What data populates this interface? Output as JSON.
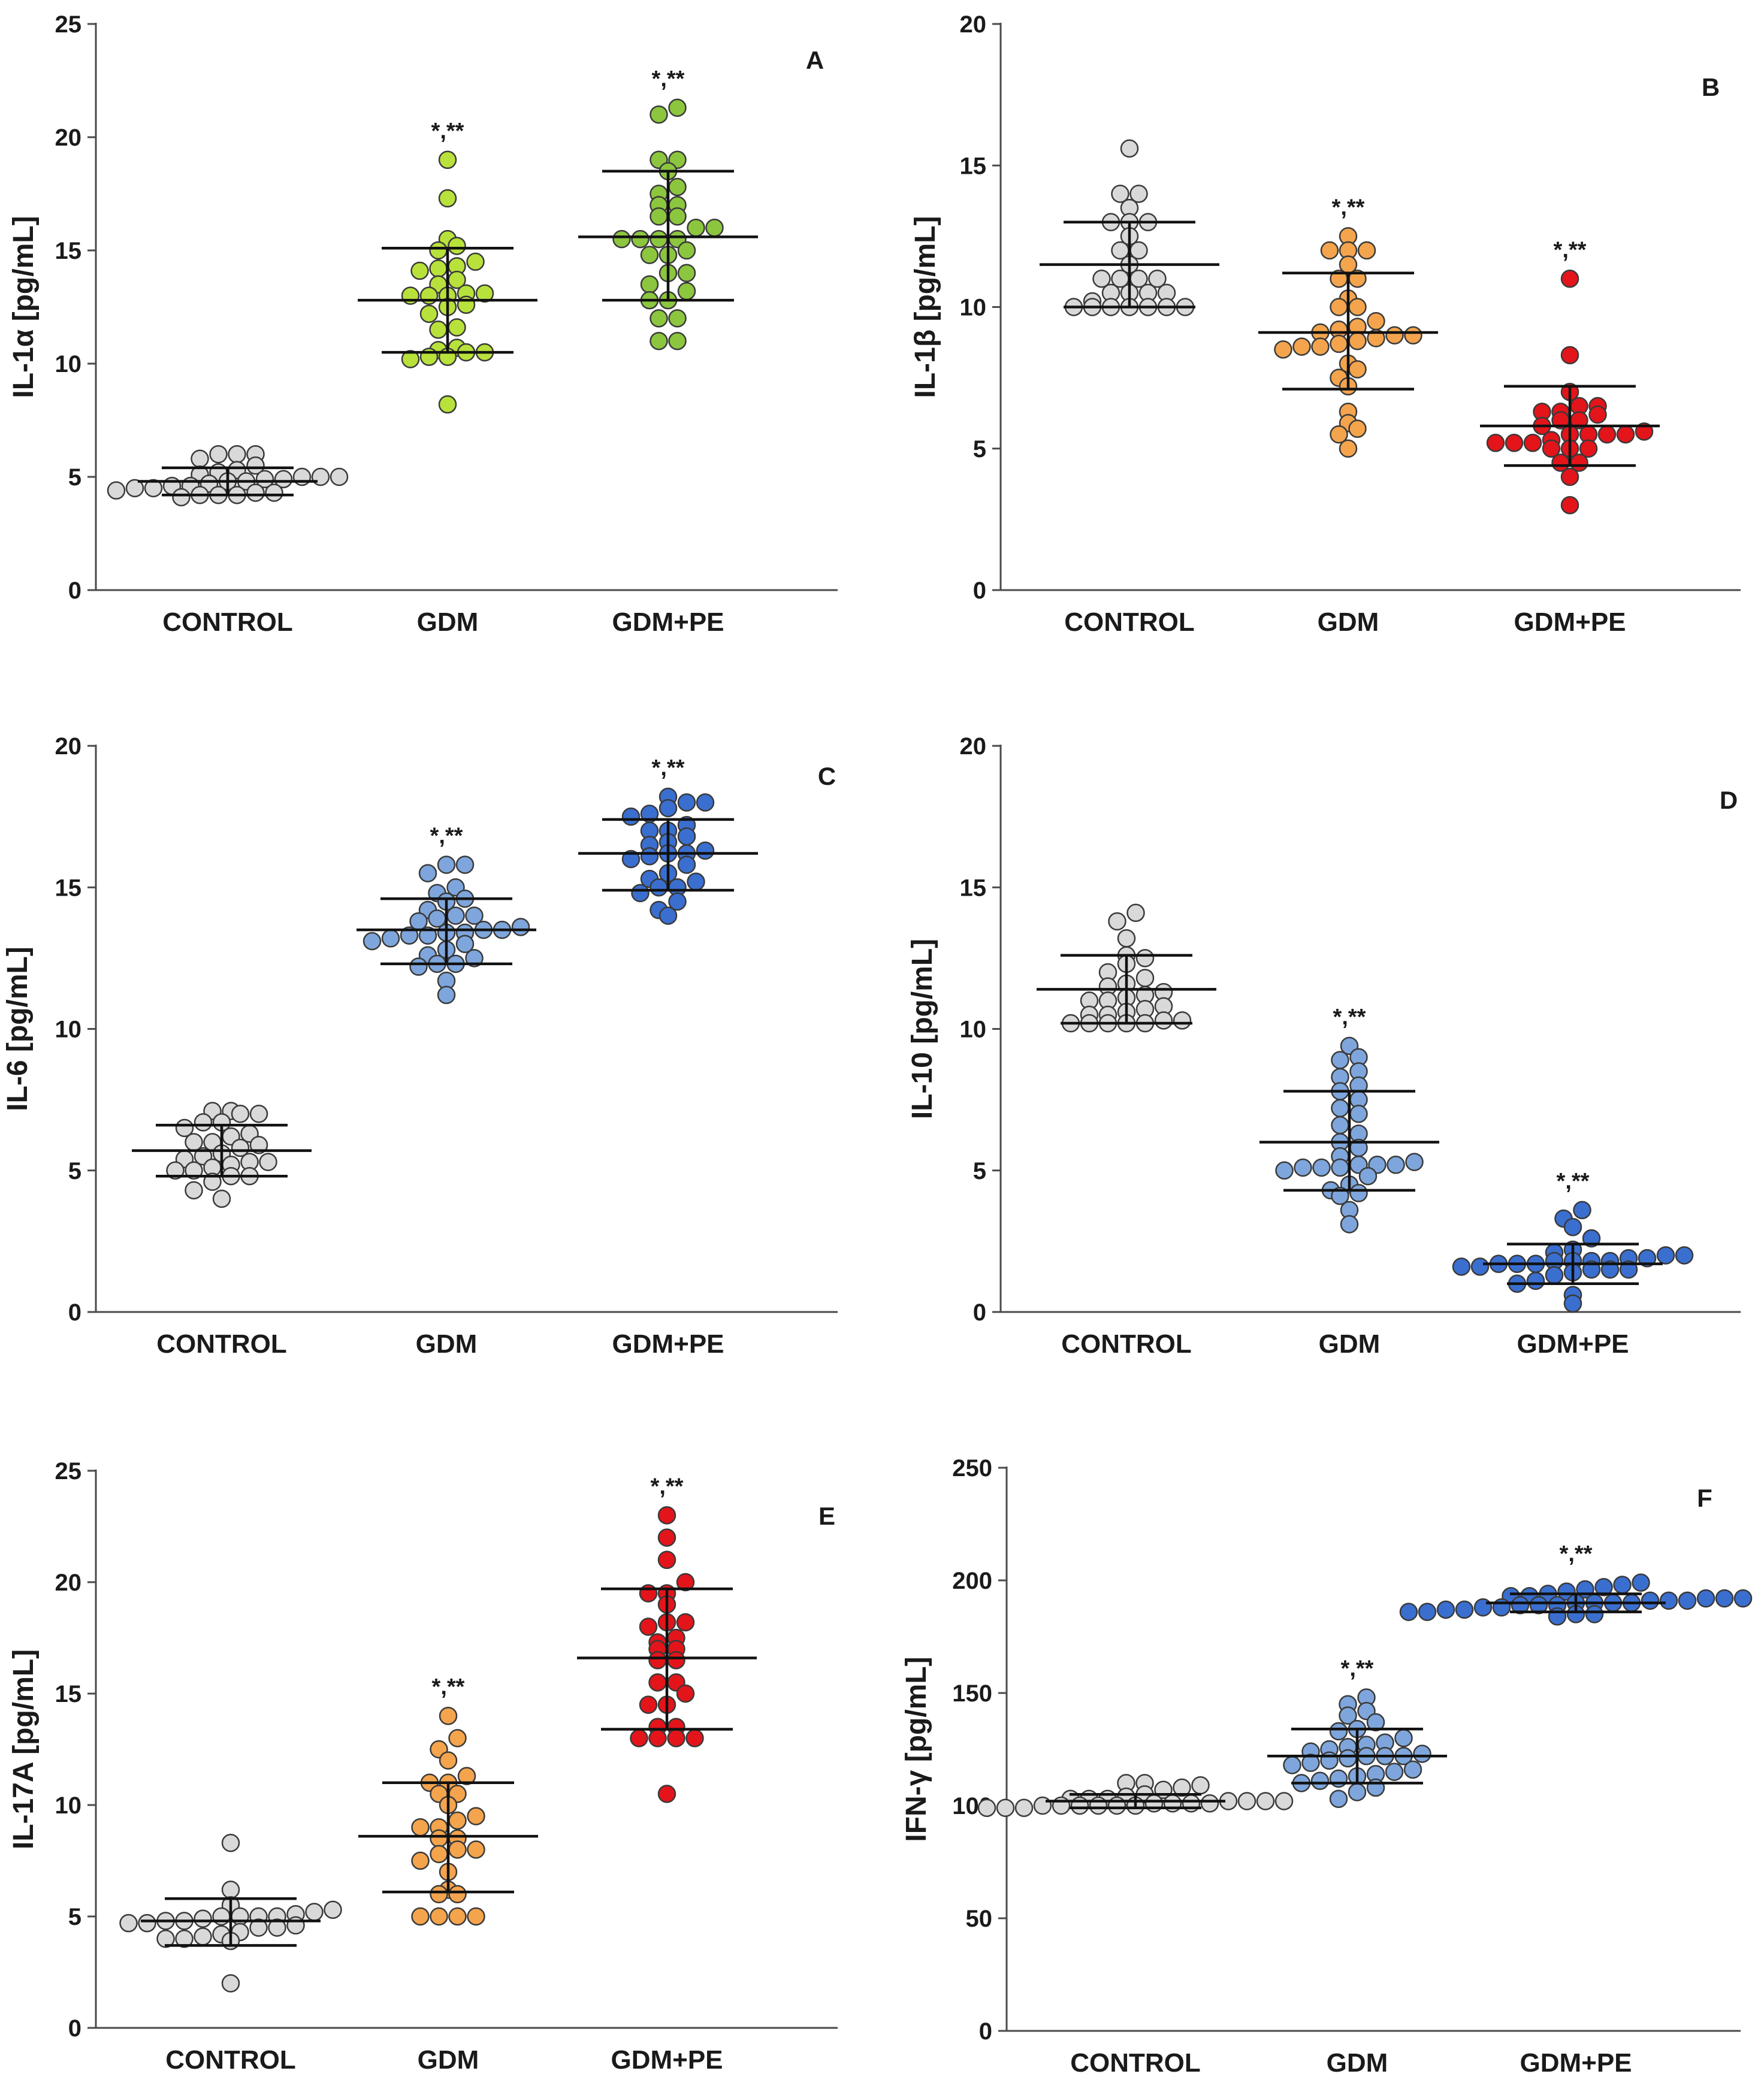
{
  "chart_data": [
    {
      "panel": "A",
      "type": "scatter",
      "ylabel": "IL-1α [pg/mL]",
      "ylim": [
        0,
        25
      ],
      "yticks": [
        0,
        5,
        10,
        15,
        20,
        25
      ],
      "categories": [
        "CONTROL",
        "GDM",
        "GDM+PE"
      ],
      "series": [
        {
          "name": "CONTROL",
          "color": "#d9d9d9",
          "mean": 4.8,
          "sd_low": 4.2,
          "sd_high": 5.4,
          "significance": "",
          "values": [
            4.1,
            4.2,
            4.2,
            4.2,
            4.3,
            4.3,
            4.4,
            4.5,
            4.5,
            4.6,
            4.6,
            4.7,
            4.8,
            4.8,
            4.9,
            4.9,
            5.0,
            5.0,
            5.0,
            5.1,
            5.2,
            5.3,
            5.5,
            5.8,
            6.0,
            6.0,
            6.0
          ]
        },
        {
          "name": "GDM",
          "color": "#b8e23b",
          "mean": 12.8,
          "sd_low": 10.5,
          "sd_high": 15.1,
          "significance": "*,**",
          "values": [
            8.2,
            10.2,
            10.3,
            10.3,
            10.5,
            10.5,
            10.6,
            10.7,
            11.5,
            11.6,
            12.2,
            12.5,
            12.6,
            13.0,
            13.0,
            13.0,
            13.1,
            13.1,
            13.5,
            13.7,
            14.1,
            14.2,
            14.3,
            14.5,
            15.0,
            15.2,
            15.5,
            17.3,
            19.0
          ]
        },
        {
          "name": "GDM+PE",
          "color": "#8cc63f",
          "mean": 15.6,
          "sd_low": 12.8,
          "sd_high": 18.5,
          "significance": "*,**",
          "values": [
            11.0,
            11.0,
            12.0,
            12.0,
            12.8,
            12.8,
            13.2,
            13.5,
            14.0,
            14.0,
            14.8,
            14.8,
            15.0,
            15.5,
            15.5,
            15.5,
            15.5,
            16.0,
            16.0,
            16.5,
            16.5,
            17.0,
            17.0,
            17.5,
            17.8,
            18.5,
            19.0,
            19.0,
            21.0,
            21.3
          ]
        }
      ]
    },
    {
      "panel": "B",
      "type": "scatter",
      "ylabel": "IL-1β [pg/mL]",
      "ylim": [
        0,
        20
      ],
      "yticks": [
        0,
        5,
        10,
        15,
        20
      ],
      "categories": [
        "CONTROL",
        "GDM",
        "GDM+PE"
      ],
      "series": [
        {
          "name": "CONTROL",
          "color": "#d9d9d9",
          "mean": 11.5,
          "sd_low": 10.0,
          "sd_high": 13.0,
          "significance": "",
          "values": [
            10.0,
            10.0,
            10.0,
            10.0,
            10.0,
            10.0,
            10.0,
            10.2,
            10.5,
            10.5,
            10.5,
            10.5,
            11.0,
            11.0,
            11.0,
            11.0,
            11.5,
            12.0,
            12.0,
            12.5,
            13.0,
            13.0,
            13.0,
            13.5,
            14.0,
            14.0,
            15.6
          ]
        },
        {
          "name": "GDM",
          "color": "#f4a44d",
          "mean": 9.1,
          "sd_low": 7.1,
          "sd_high": 11.2,
          "significance": "*,**",
          "values": [
            5.0,
            5.5,
            5.7,
            5.9,
            6.3,
            7.2,
            7.5,
            7.8,
            8.0,
            8.5,
            8.6,
            8.6,
            8.7,
            8.8,
            8.9,
            9.0,
            9.0,
            9.1,
            9.2,
            9.3,
            9.5,
            10.0,
            10.0,
            10.3,
            11.0,
            11.0,
            11.5,
            12.0,
            12.0,
            12.0,
            12.5
          ]
        },
        {
          "name": "GDM+PE",
          "color": "#e4141b",
          "mean": 5.8,
          "sd_low": 4.4,
          "sd_high": 7.2,
          "significance": "*,**",
          "values": [
            3.0,
            4.0,
            4.5,
            4.5,
            5.0,
            5.0,
            5.0,
            5.2,
            5.2,
            5.2,
            5.3,
            5.5,
            5.5,
            5.5,
            5.5,
            5.6,
            5.8,
            6.0,
            6.0,
            6.2,
            6.3,
            6.3,
            6.5,
            6.5,
            7.0,
            8.3,
            11.0
          ]
        }
      ]
    },
    {
      "panel": "C",
      "type": "scatter",
      "ylabel": "IL-6 [pg/mL]",
      "ylim": [
        0,
        20
      ],
      "yticks": [
        0,
        5,
        10,
        15,
        20
      ],
      "categories": [
        "CONTROL",
        "GDM",
        "GDM+PE"
      ],
      "series": [
        {
          "name": "CONTROL",
          "color": "#d9d9d9",
          "mean": 5.7,
          "sd_low": 4.8,
          "sd_high": 6.6,
          "significance": "",
          "values": [
            4.0,
            4.3,
            4.6,
            4.8,
            4.8,
            5.0,
            5.0,
            5.1,
            5.2,
            5.3,
            5.3,
            5.4,
            5.5,
            5.6,
            5.8,
            5.9,
            6.0,
            6.0,
            6.2,
            6.3,
            6.5,
            6.7,
            6.7,
            7.0,
            7.0,
            7.1,
            7.1
          ]
        },
        {
          "name": "GDM",
          "color": "#7ea6dc",
          "mean": 13.5,
          "sd_low": 12.3,
          "sd_high": 14.6,
          "significance": "*,**",
          "values": [
            11.2,
            11.7,
            12.2,
            12.3,
            12.3,
            12.5,
            12.6,
            12.8,
            13.0,
            13.1,
            13.2,
            13.3,
            13.3,
            13.4,
            13.4,
            13.5,
            13.5,
            13.6,
            13.8,
            13.9,
            14.0,
            14.0,
            14.2,
            14.5,
            14.6,
            14.8,
            15.0,
            15.5,
            15.8,
            15.8
          ]
        },
        {
          "name": "GDM+PE",
          "color": "#3a6fd0",
          "mean": 16.2,
          "sd_low": 14.9,
          "sd_high": 17.4,
          "significance": "*,**",
          "values": [
            14.0,
            14.2,
            14.5,
            14.8,
            15.0,
            15.0,
            15.2,
            15.3,
            15.5,
            15.8,
            16.0,
            16.1,
            16.2,
            16.2,
            16.3,
            16.5,
            16.6,
            16.8,
            17.0,
            17.0,
            17.2,
            17.5,
            17.6,
            17.8,
            18.0,
            18.0,
            18.2
          ]
        }
      ]
    },
    {
      "panel": "D",
      "type": "scatter",
      "ylabel": "IL-10 [pg/mL]",
      "ylim": [
        0,
        20
      ],
      "yticks": [
        0,
        5,
        10,
        15,
        20
      ],
      "categories": [
        "CONTROL",
        "GDM",
        "GDM+PE"
      ],
      "series": [
        {
          "name": "CONTROL",
          "color": "#d9d9d9",
          "mean": 11.4,
          "sd_low": 10.2,
          "sd_high": 12.6,
          "significance": "",
          "values": [
            10.2,
            10.2,
            10.2,
            10.2,
            10.2,
            10.3,
            10.3,
            10.5,
            10.5,
            10.6,
            10.7,
            10.8,
            11.0,
            11.0,
            11.1,
            11.2,
            11.3,
            11.5,
            11.6,
            11.8,
            12.0,
            12.3,
            12.5,
            12.6,
            13.2,
            13.8,
            14.1
          ]
        },
        {
          "name": "GDM",
          "color": "#7ea6dc",
          "mean": 6.0,
          "sd_low": 4.3,
          "sd_high": 7.8,
          "significance": "*,**",
          "values": [
            3.1,
            3.6,
            4.1,
            4.2,
            4.3,
            4.5,
            4.8,
            5.0,
            5.1,
            5.1,
            5.1,
            5.2,
            5.2,
            5.2,
            5.3,
            5.5,
            5.8,
            6.0,
            6.3,
            6.6,
            7.0,
            7.2,
            7.5,
            7.8,
            8.0,
            8.3,
            8.5,
            8.9,
            9.0,
            9.4
          ]
        },
        {
          "name": "GDM+PE",
          "color": "#3a6fd0",
          "mean": 1.7,
          "sd_low": 1.0,
          "sd_high": 2.4,
          "significance": "*,**",
          "values": [
            0.3,
            0.6,
            1.0,
            1.1,
            1.3,
            1.4,
            1.5,
            1.5,
            1.5,
            1.6,
            1.6,
            1.7,
            1.7,
            1.7,
            1.8,
            1.8,
            1.8,
            1.8,
            1.9,
            1.9,
            2.0,
            2.0,
            2.1,
            2.2,
            2.6,
            3.0,
            3.3,
            3.6
          ]
        }
      ]
    },
    {
      "panel": "E",
      "type": "scatter",
      "ylabel": "IL-17A [pg/mL]",
      "ylim": [
        0,
        25
      ],
      "yticks": [
        0,
        5,
        10,
        15,
        20,
        25
      ],
      "categories": [
        "CONTROL",
        "GDM",
        "GDM+PE"
      ],
      "series": [
        {
          "name": "CONTROL",
          "color": "#d9d9d9",
          "mean": 4.8,
          "sd_low": 3.7,
          "sd_high": 5.8,
          "significance": "",
          "values": [
            2.0,
            3.9,
            4.0,
            4.0,
            4.1,
            4.2,
            4.3,
            4.5,
            4.5,
            4.6,
            4.7,
            4.7,
            4.8,
            4.8,
            4.9,
            5.0,
            5.0,
            5.0,
            5.0,
            5.1,
            5.2,
            5.3,
            5.5,
            6.2,
            8.3
          ]
        },
        {
          "name": "GDM",
          "color": "#f4a44d",
          "mean": 8.6,
          "sd_low": 6.1,
          "sd_high": 11.0,
          "significance": "*,**",
          "values": [
            5.0,
            5.0,
            5.0,
            5.0,
            6.0,
            6.0,
            6.2,
            7.0,
            7.5,
            7.8,
            8.0,
            8.0,
            8.5,
            8.5,
            9.0,
            9.0,
            9.3,
            9.5,
            10.0,
            10.5,
            10.5,
            11.0,
            11.0,
            11.3,
            12.0,
            12.5,
            13.0,
            14.0
          ]
        },
        {
          "name": "GDM+PE",
          "color": "#e4141b",
          "mean": 16.6,
          "sd_low": 13.4,
          "sd_high": 19.7,
          "significance": "*,**",
          "values": [
            10.5,
            13.0,
            13.0,
            13.0,
            13.0,
            13.5,
            13.5,
            14.5,
            14.5,
            15.0,
            15.5,
            15.5,
            16.5,
            16.5,
            17.0,
            17.0,
            17.3,
            17.5,
            18.0,
            18.2,
            18.2,
            19.0,
            19.5,
            19.5,
            20.0,
            21.0,
            22.0,
            23.0
          ]
        }
      ]
    },
    {
      "panel": "F",
      "type": "scatter",
      "ylabel": "IFN-γ [pg/mL]",
      "ylim": [
        0,
        250
      ],
      "yticks": [
        0,
        50,
        100,
        150,
        200,
        250
      ],
      "categories": [
        "CONTROL",
        "GDM",
        "GDM+PE"
      ],
      "series": [
        {
          "name": "CONTROL",
          "color": "#d9d9d9",
          "mean": 102,
          "sd_low": 99,
          "sd_high": 105,
          "significance": "",
          "values": [
            99,
            99,
            99,
            100,
            100,
            100,
            100,
            100,
            100,
            101,
            101,
            101,
            101,
            102,
            102,
            102,
            102,
            103,
            103,
            103,
            104,
            105,
            107,
            108,
            109,
            110,
            110
          ]
        },
        {
          "name": "GDM",
          "color": "#7ea6dc",
          "mean": 122,
          "sd_low": 110,
          "sd_high": 134,
          "significance": "*,**",
          "values": [
            103,
            106,
            108,
            110,
            111,
            112,
            113,
            114,
            115,
            116,
            118,
            119,
            120,
            121,
            122,
            122,
            122,
            123,
            124,
            125,
            126,
            127,
            128,
            130,
            133,
            134,
            137,
            140,
            142,
            145,
            148
          ]
        },
        {
          "name": "GDM+PE",
          "color": "#3a6fd0",
          "mean": 190,
          "sd_low": 186,
          "sd_high": 194,
          "significance": "*,**",
          "values": [
            184,
            185,
            185,
            186,
            186,
            187,
            187,
            188,
            188,
            189,
            189,
            189,
            190,
            190,
            190,
            190,
            191,
            191,
            191,
            192,
            192,
            192,
            193,
            193,
            194,
            195,
            196,
            197,
            198,
            199
          ]
        }
      ]
    }
  ]
}
